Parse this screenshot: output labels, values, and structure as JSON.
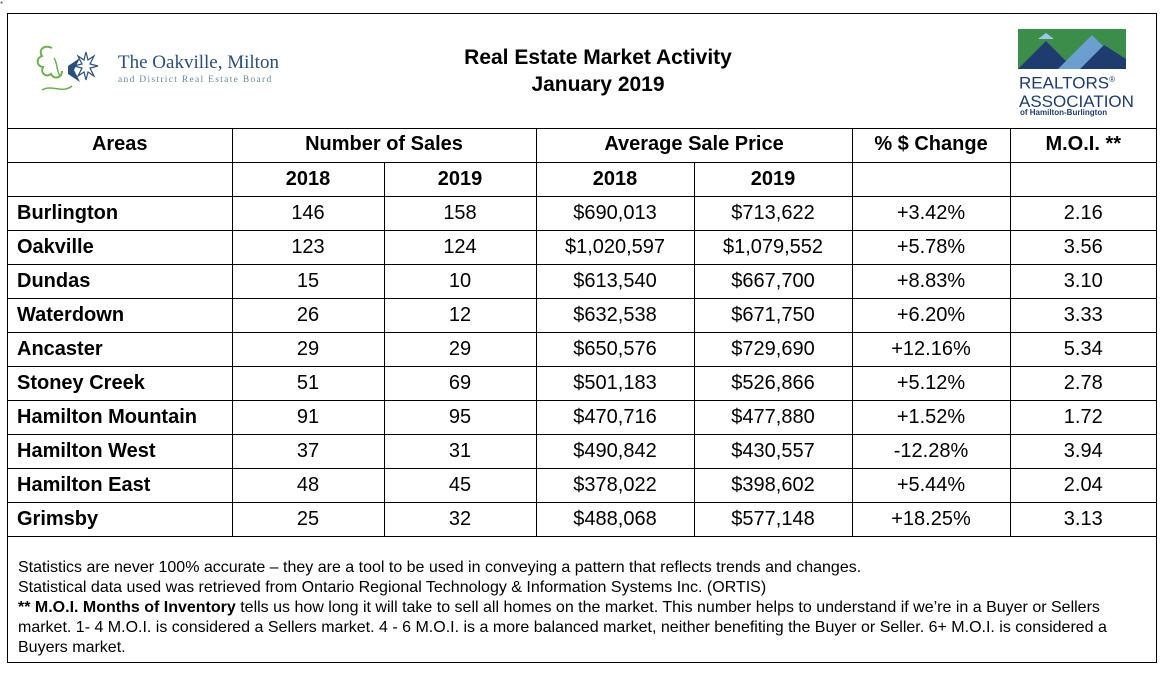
{
  "corner_mark": "*",
  "header": {
    "left_logo": {
      "org_name": "The Oakville, Milton",
      "org_sub": "and District Real Estate Board",
      "colors": {
        "text": "#2b4f7a",
        "leaf": "#6bb04a",
        "accent": "#2b4f7a"
      }
    },
    "title_line1": "Real Estate Market Activity",
    "title_line2": "January 2019",
    "right_logo": {
      "name_line1": "REALTORS",
      "name_line1_mark": "®",
      "name_line2": "ASSOCIATION",
      "sub": "of Hamilton-Burlington",
      "colors": {
        "green": "#3c8c4a",
        "blue": "#1e3c6e",
        "sky": "#6a9fd0"
      }
    }
  },
  "table": {
    "headers": {
      "areas": "Areas",
      "sales": "Number of Sales",
      "price": "Average Sale Price",
      "change": "% $ Change",
      "moi": "M.O.I. **"
    },
    "subheaders": [
      "2018",
      "2019",
      "2018",
      "2019"
    ],
    "rows": [
      {
        "area": "Burlington",
        "sales_2018": "146",
        "sales_2019": "158",
        "price_2018": "$690,013",
        "price_2019": "$713,622",
        "change": "+3.42%",
        "moi": "2.16"
      },
      {
        "area": "Oakville",
        "sales_2018": "123",
        "sales_2019": "124",
        "price_2018": "$1,020,597",
        "price_2019": "$1,079,552",
        "change": "+5.78%",
        "moi": "3.56"
      },
      {
        "area": "Dundas",
        "sales_2018": "15",
        "sales_2019": "10",
        "price_2018": "$613,540",
        "price_2019": "$667,700",
        "change": "+8.83%",
        "moi": "3.10"
      },
      {
        "area": "Waterdown",
        "sales_2018": "26",
        "sales_2019": "12",
        "price_2018": "$632,538",
        "price_2019": "$671,750",
        "change": "+6.20%",
        "moi": "3.33"
      },
      {
        "area": "Ancaster",
        "sales_2018": "29",
        "sales_2019": "29",
        "price_2018": "$650,576",
        "price_2019": "$729,690",
        "change": "+12.16%",
        "moi": "5.34"
      },
      {
        "area": "Stoney Creek",
        "sales_2018": "51",
        "sales_2019": "69",
        "price_2018": "$501,183",
        "price_2019": "$526,866",
        "change": "+5.12%",
        "moi": "2.78"
      },
      {
        "area": "Hamilton Mountain",
        "sales_2018": "91",
        "sales_2019": "95",
        "price_2018": "$470,716",
        "price_2019": "$477,880",
        "change": "+1.52%",
        "moi": "1.72"
      },
      {
        "area": "Hamilton West",
        "sales_2018": "37",
        "sales_2019": "31",
        "price_2018": "$490,842",
        "price_2019": "$430,557",
        "change": "-12.28%",
        "moi": "3.94"
      },
      {
        "area": "Hamilton East",
        "sales_2018": "48",
        "sales_2019": "45",
        "price_2018": "$378,022",
        "price_2019": "$398,602",
        "change": "+5.44%",
        "moi": "2.04"
      },
      {
        "area": "Grimsby",
        "sales_2018": "25",
        "sales_2019": "32",
        "price_2018": "$488,068",
        "price_2019": "$577,148",
        "change": "+18.25%",
        "moi": "3.13"
      }
    ]
  },
  "footer": {
    "line1": "Statistics are never 100% accurate – they are a tool to be used in conveying a pattern that reflects trends and changes.",
    "line2": "Statistical data used was retrieved from Ontario Regional Technology & Information Systems Inc. (ORTIS)",
    "moi_label": "** M.O.I. Months of Inventory",
    "moi_text": " tells us how long it will take to sell all homes on the market. This number helps to understand if we’re in a Buyer or Sellers market. 1- 4 M.O.I. is considered a Sellers market. 4 - 6 M.O.I. is a more balanced market, neither benefiting the Buyer or Seller. 6+ M.O.I. is considered a Buyers market."
  }
}
